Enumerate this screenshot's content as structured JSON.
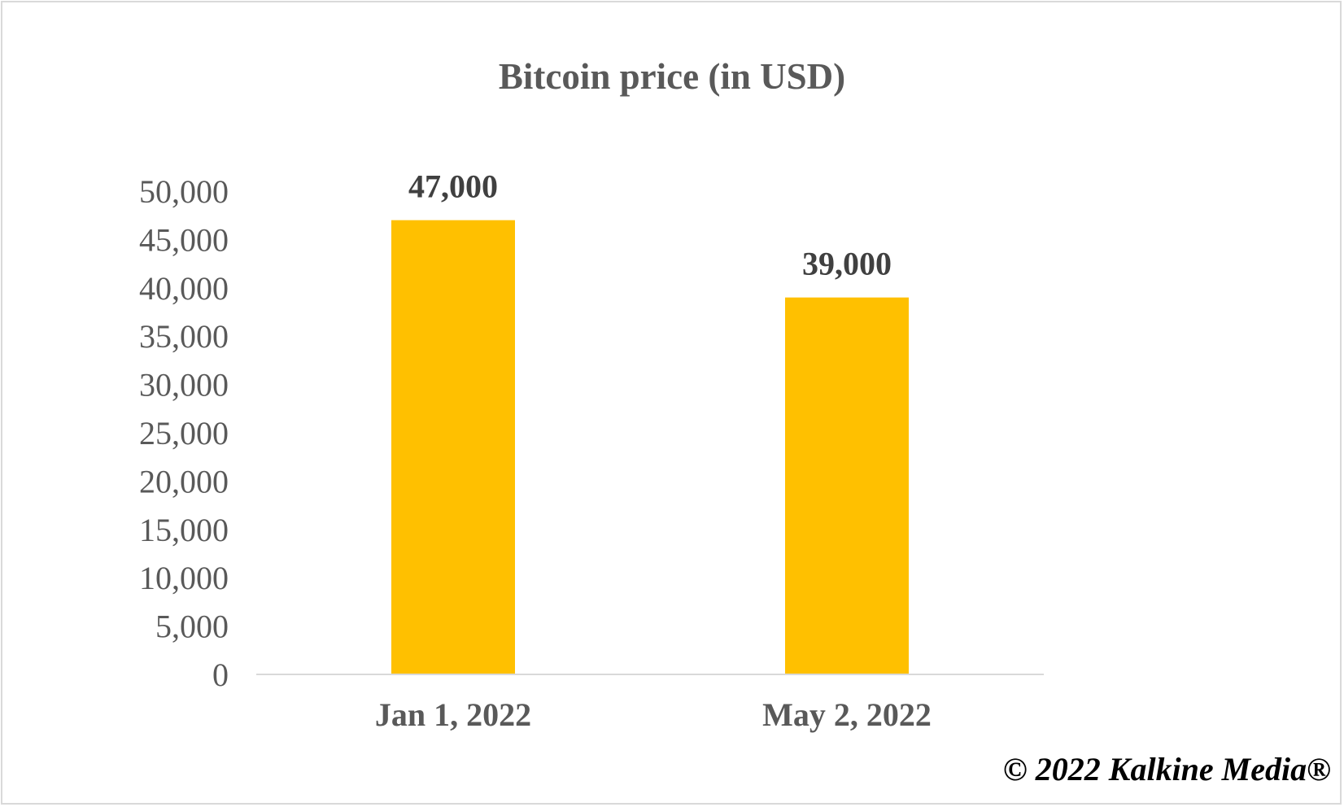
{
  "chart_data": {
    "type": "bar",
    "title": "Bitcoin price (in USD)",
    "categories": [
      "Jan 1, 2022",
      "May 2, 2022"
    ],
    "values": [
      47000,
      39000
    ],
    "data_labels": [
      "47,000",
      "39,000"
    ],
    "ylim": [
      0,
      50000
    ],
    "yticks": [
      0,
      5000,
      10000,
      15000,
      20000,
      25000,
      30000,
      35000,
      40000,
      45000,
      50000
    ],
    "ytick_labels": [
      "0",
      "5,000",
      "10,000",
      "15,000",
      "20,000",
      "25,000",
      "30,000",
      "35,000",
      "40,000",
      "45,000",
      "50,000"
    ],
    "grid": false,
    "legend": "none",
    "bar_color": "#FFC000"
  },
  "footer": {
    "copyright": "© 2022 Kalkine Media®"
  }
}
